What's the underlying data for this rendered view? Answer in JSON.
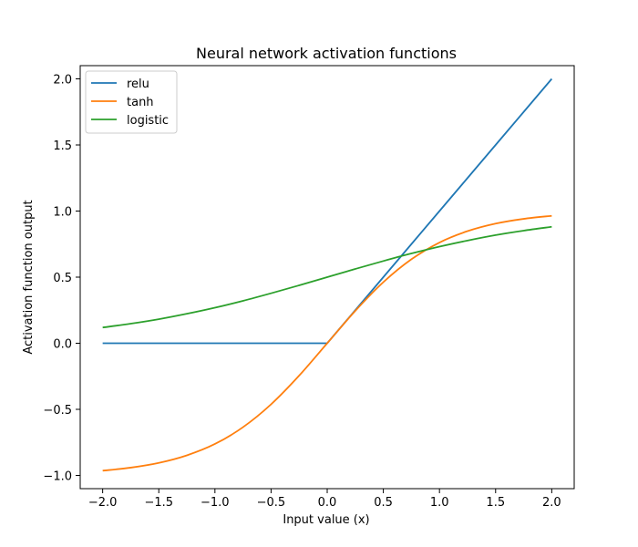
{
  "chart_data": {
    "type": "line",
    "title": "Neural network activation functions",
    "xlabel": "Input value (x)",
    "ylabel": "Activation function output",
    "xlim": [
      -2.2,
      2.2
    ],
    "ylim": [
      -1.1,
      2.1
    ],
    "xticks": [
      -2.0,
      -1.5,
      -1.0,
      -0.5,
      0.0,
      0.5,
      1.0,
      1.5,
      2.0
    ],
    "xtick_labels": [
      "−2.0",
      "−1.5",
      "−1.0",
      "−0.5",
      "0.0",
      "0.5",
      "1.0",
      "1.5",
      "2.0"
    ],
    "yticks": [
      -1.0,
      -0.5,
      0.0,
      0.5,
      1.0,
      1.5,
      2.0
    ],
    "ytick_labels": [
      "−1.0",
      "−0.5",
      "0.0",
      "0.5",
      "1.0",
      "1.5",
      "2.0"
    ],
    "grid": false,
    "legend_position": "top-left",
    "x": [
      -2.0,
      -1.75,
      -1.5,
      -1.25,
      -1.0,
      -0.75,
      -0.5,
      -0.25,
      0.0,
      0.25,
      0.5,
      0.75,
      1.0,
      1.25,
      1.5,
      1.75,
      2.0
    ],
    "series": [
      {
        "name": "relu",
        "color": "#1f77b4",
        "values": [
          0.0,
          0.0,
          0.0,
          0.0,
          0.0,
          0.0,
          0.0,
          0.0,
          0.0,
          0.25,
          0.5,
          0.75,
          1.0,
          1.25,
          1.5,
          1.75,
          2.0
        ]
      },
      {
        "name": "tanh",
        "color": "#ff7f0e",
        "values": [
          -0.964,
          -0.941,
          -0.905,
          -0.848,
          -0.762,
          -0.635,
          -0.462,
          -0.245,
          0.0,
          0.245,
          0.462,
          0.635,
          0.762,
          0.848,
          0.905,
          0.941,
          0.964
        ]
      },
      {
        "name": "logistic",
        "color": "#2ca02c",
        "values": [
          0.119,
          0.148,
          0.182,
          0.223,
          0.269,
          0.321,
          0.378,
          0.438,
          0.5,
          0.562,
          0.622,
          0.679,
          0.731,
          0.777,
          0.818,
          0.852,
          0.881
        ]
      }
    ]
  }
}
